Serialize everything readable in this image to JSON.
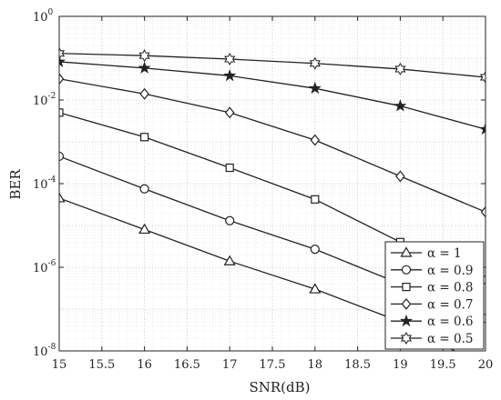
{
  "chart_data": {
    "type": "line",
    "xlabel": "SNR(dB)",
    "ylabel": "BER",
    "xlim": [
      15,
      20
    ],
    "ylim": [
      1e-08,
      1
    ],
    "yscale": "log",
    "grid": true,
    "legend_position": "bottom-right",
    "x": [
      15,
      16,
      17,
      18,
      19,
      20
    ],
    "x_tick_labels": [
      "15",
      "15.5",
      "16",
      "16.5",
      "17",
      "17.5",
      "18",
      "18.5",
      "19",
      "19.5",
      "20"
    ],
    "y_tick_labels": [
      {
        "base": "10",
        "exp": "0"
      },
      {
        "base": "10",
        "exp": "-2"
      },
      {
        "base": "10",
        "exp": "-4"
      },
      {
        "base": "10",
        "exp": "-6"
      },
      {
        "base": "10",
        "exp": "-8"
      }
    ],
    "series": [
      {
        "name": "α = 1",
        "marker": "triangle",
        "values": [
          4.5e-05,
          8e-06,
          1.4e-06,
          3e-07,
          5e-08,
          4e-09
        ]
      },
      {
        "name": "α = 0.9",
        "marker": "circle",
        "values": [
          0.00045,
          7.5e-05,
          1.3e-05,
          2.7e-06,
          4e-07,
          6e-08
        ]
      },
      {
        "name": "α = 0.8",
        "marker": "square",
        "values": [
          0.005,
          0.0013,
          0.00024,
          4.2e-05,
          4e-06,
          5e-07
        ]
      },
      {
        "name": "α = 0.7",
        "marker": "diamond",
        "values": [
          0.032,
          0.014,
          0.005,
          0.0011,
          0.00015,
          2.1e-05
        ]
      },
      {
        "name": "α = 0.6",
        "marker": "star5",
        "values": [
          0.082,
          0.058,
          0.038,
          0.019,
          0.0072,
          0.002
        ]
      },
      {
        "name": "α = 0.5",
        "marker": "star6",
        "values": [
          0.13,
          0.115,
          0.095,
          0.075,
          0.055,
          0.035
        ]
      }
    ]
  }
}
